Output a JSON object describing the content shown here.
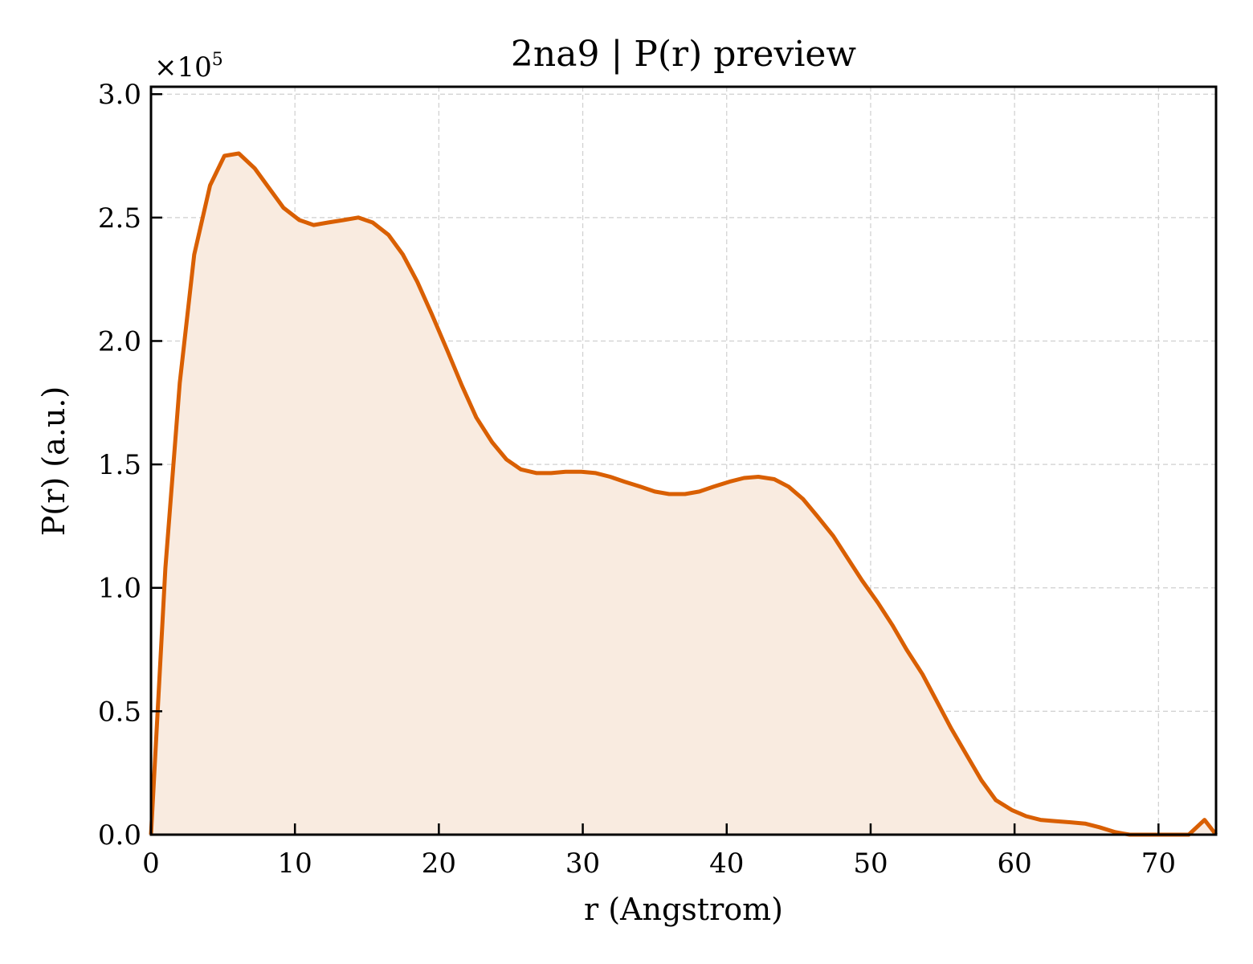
{
  "chart_data": {
    "type": "area",
    "title": "2na9 | P(r) preview",
    "xlabel": "r (Angstrom)",
    "ylabel": "P(r) (a.u.)",
    "y_multiplier": {
      "base": "×10",
      "exponent": "5"
    },
    "xlim": [
      0,
      74
    ],
    "ylim": [
      0,
      3.03
    ],
    "xticks": [
      0,
      10,
      20,
      30,
      40,
      50,
      60,
      70
    ],
    "xtick_labels": [
      "0",
      "10",
      "20",
      "30",
      "40",
      "50",
      "60",
      "70"
    ],
    "yticks": [
      0,
      0.5,
      1.0,
      1.5,
      2.0,
      2.5,
      3.0
    ],
    "ytick_labels": [
      "0.0",
      "0.5",
      "1.0",
      "1.5",
      "2.0",
      "2.5",
      "3.0"
    ],
    "grid": true,
    "line_color": "#d95f02",
    "fill_color": "#f9ebe0",
    "series": [
      {
        "x": [
          0,
          1.0,
          2.0,
          3.0,
          4.1,
          5.1,
          6.1,
          7.2,
          8.2,
          9.2,
          10.3,
          11.3,
          12.3,
          13.4,
          14.4,
          15.4,
          16.5,
          17.5,
          18.5,
          19.5,
          20.6,
          21.6,
          22.6,
          23.7,
          24.7,
          25.7,
          26.8,
          27.8,
          28.8,
          29.9,
          30.9,
          31.9,
          32.9,
          34.0,
          35.0,
          36.0,
          37.1,
          38.1,
          39.1,
          40.2,
          41.2,
          42.2,
          43.3,
          44.3,
          45.3,
          46.3,
          47.4,
          48.4,
          49.4,
          50.5,
          51.5,
          52.5,
          53.6,
          54.6,
          55.6,
          56.7,
          57.7,
          58.7,
          59.8,
          60.8,
          61.8,
          62.8,
          63.9,
          64.9,
          65.9,
          67.0,
          68.0,
          69.0,
          70.1,
          71.1,
          72.1,
          73.2,
          74.0
        ],
        "values": [
          0.0,
          1.08,
          1.83,
          2.35,
          2.63,
          2.75,
          2.76,
          2.7,
          2.62,
          2.54,
          2.49,
          2.47,
          2.48,
          2.49,
          2.5,
          2.48,
          2.43,
          2.35,
          2.24,
          2.11,
          1.96,
          1.82,
          1.69,
          1.59,
          1.52,
          1.48,
          1.465,
          1.465,
          1.47,
          1.47,
          1.465,
          1.45,
          1.43,
          1.41,
          1.39,
          1.38,
          1.38,
          1.39,
          1.41,
          1.43,
          1.445,
          1.45,
          1.44,
          1.41,
          1.36,
          1.29,
          1.21,
          1.12,
          1.03,
          0.94,
          0.85,
          0.75,
          0.65,
          0.54,
          0.43,
          0.32,
          0.22,
          0.14,
          0.1,
          0.075,
          0.06,
          0.055,
          0.05,
          0.045,
          0.03,
          0.01,
          0.0,
          0.0,
          0.0,
          0.0,
          0.0,
          0.06,
          0.0
        ]
      }
    ]
  }
}
